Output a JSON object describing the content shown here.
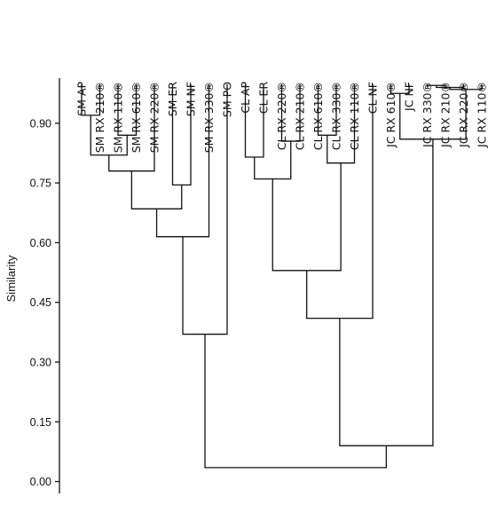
{
  "chart_data": {
    "type": "dendrogram",
    "ylabel": "Similarity",
    "ylim": [
      -0.03,
      1.0
    ],
    "yticks": [
      0.0,
      0.15,
      0.3,
      0.45,
      0.6,
      0.75,
      0.9
    ],
    "ytick_labels": [
      "0.00",
      "0.15",
      "0.30",
      "0.45",
      "0.60",
      "0.75",
      "0.90"
    ],
    "grid": false,
    "legend": "none",
    "leaves": [
      "SM AP",
      "SM RX 210®",
      "SM RX 110®",
      "SM RX 610®",
      "SM RX 220®",
      "SM ER",
      "SM NF",
      "SM RX 330®",
      "SM PO",
      "CL AP",
      "CL ER",
      "CL RX 220®",
      "CL RX 210®",
      "CL RX 610®",
      "CL RX 330®",
      "CL RX 110®",
      "CL NF",
      "JC RX 610®",
      "JC NF",
      "JC RX 330®",
      "JC RX 210®",
      "JC RX 220®",
      "JC RX 110®"
    ],
    "merges": [
      {
        "id": "a1",
        "children": [
          "L0",
          "L1"
        ],
        "similarity": 0.92
      },
      {
        "id": "a2",
        "children": [
          "L2",
          "L3"
        ],
        "similarity": 0.87
      },
      {
        "id": "a3",
        "children": [
          "a1",
          "a2"
        ],
        "similarity": 0.82
      },
      {
        "id": "a4",
        "children": [
          "a3",
          "L4"
        ],
        "similarity": 0.78
      },
      {
        "id": "a5",
        "children": [
          "L5",
          "L6"
        ],
        "similarity": 0.745
      },
      {
        "id": "a6",
        "children": [
          "a4",
          "a5"
        ],
        "similarity": 0.685
      },
      {
        "id": "a7",
        "children": [
          "a6",
          "L7"
        ],
        "similarity": 0.615
      },
      {
        "id": "a8",
        "children": [
          "a7",
          "L8"
        ],
        "similarity": 0.37
      },
      {
        "id": "b1",
        "children": [
          "L11",
          "L12"
        ],
        "similarity": 0.855
      },
      {
        "id": "b2",
        "children": [
          "L9",
          "L10"
        ],
        "similarity": 0.815
      },
      {
        "id": "b3",
        "children": [
          "L13",
          "L14"
        ],
        "similarity": 0.87
      },
      {
        "id": "b4",
        "children": [
          "b3",
          "L15"
        ],
        "similarity": 0.8
      },
      {
        "id": "b5",
        "children": [
          "b2",
          "b1"
        ],
        "similarity": 0.76
      },
      {
        "id": "b6",
        "children": [
          "b5",
          "b4"
        ],
        "similarity": 0.53
      },
      {
        "id": "b7",
        "children": [
          "b6",
          "L16"
        ],
        "similarity": 0.41
      },
      {
        "id": "c1",
        "children": [
          "L17",
          "L18"
        ],
        "similarity": 0.975
      },
      {
        "id": "c2",
        "children": [
          "L19",
          "L20"
        ],
        "similarity": 0.995
      },
      {
        "id": "c3",
        "children": [
          "c2",
          "L21"
        ],
        "similarity": 0.99
      },
      {
        "id": "c4",
        "children": [
          "c3",
          "L22"
        ],
        "similarity": 0.985
      },
      {
        "id": "c5",
        "children": [
          "c1",
          "c4"
        ],
        "similarity": 0.86
      },
      {
        "id": "d1",
        "children": [
          "b7",
          "c5"
        ],
        "similarity": 0.09
      },
      {
        "id": "root",
        "children": [
          "a8",
          "d1"
        ],
        "similarity": 0.035
      }
    ]
  }
}
